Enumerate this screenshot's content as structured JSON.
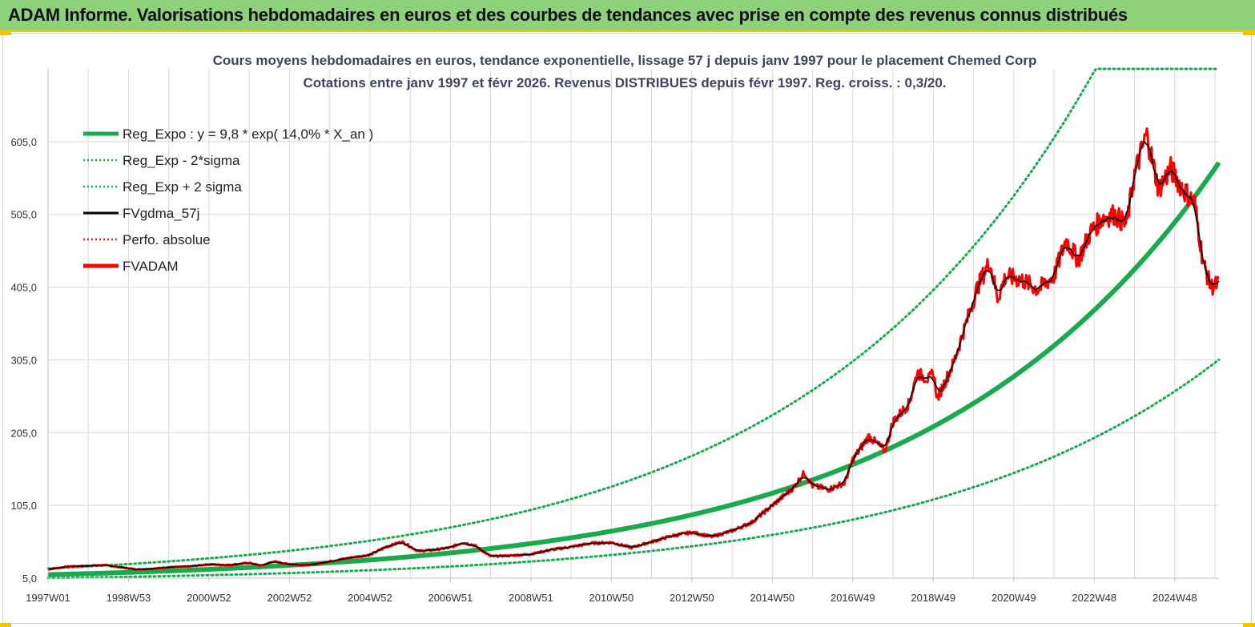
{
  "banner": {
    "title": "ADAM Informe. Valorisations hebdomadaires en euros et des courbes de tendances avec prise en compte des revenus connus distribués"
  },
  "colors": {
    "banner_bg": "#8fd17a",
    "banner_border": "#f2c300",
    "reg_expo": "#1aaa4e",
    "reg_band": "#1aaa4e",
    "fv_smooth": "#000000",
    "fv_adam": "#ff0000",
    "perfo": "#e02020",
    "grid": "#d9d9d9"
  },
  "chart_data": {
    "type": "line",
    "title_line1": "Cours moyens hebdomadaires en euros, tendance exponentielle, lissage 57 j depuis janv 1997 pour le placement Chemed Corp",
    "title_line2": "Cotations entre janv 1997 et févr 2026. Revenus DISTRIBUES depuis févr 1997. Reg. croiss. : 0,3/20.",
    "x_range": [
      1997.0,
      2026.1
    ],
    "x_ticks": [
      {
        "x": 1997.0,
        "label": "1997W01"
      },
      {
        "x": 1999.0,
        "label": "1998W53"
      },
      {
        "x": 2001.0,
        "label": "2000W52"
      },
      {
        "x": 2003.0,
        "label": "2002W52"
      },
      {
        "x": 2005.0,
        "label": "2004W52"
      },
      {
        "x": 2007.0,
        "label": "2006W51"
      },
      {
        "x": 2009.0,
        "label": "2008W51"
      },
      {
        "x": 2011.0,
        "label": "2010W50"
      },
      {
        "x": 2013.0,
        "label": "2012W50"
      },
      {
        "x": 2015.0,
        "label": "2014W50"
      },
      {
        "x": 2017.0,
        "label": "2016W49"
      },
      {
        "x": 2019.0,
        "label": "2018W49"
      },
      {
        "x": 2021.0,
        "label": "2020W49"
      },
      {
        "x": 2023.0,
        "label": "2022W48"
      },
      {
        "x": 2025.0,
        "label": "2024W48"
      }
    ],
    "y_range": [
      5,
      705
    ],
    "y_ticks": [
      {
        "y": 5,
        "label": "5,0"
      },
      {
        "y": 105,
        "label": "105,0"
      },
      {
        "y": 205,
        "label": "205,0"
      },
      {
        "y": 305,
        "label": "305,0"
      },
      {
        "y": 405,
        "label": "405,0"
      },
      {
        "y": 505,
        "label": "505,0"
      },
      {
        "y": 605,
        "label": "605,0"
      }
    ],
    "legend": [
      {
        "key": "reg_expo",
        "label": "Reg_Expo : y = 9,8 * exp( 14,0% *  X_an )",
        "style": "solid-thick",
        "color": "#1aaa4e"
      },
      {
        "key": "reg_minus",
        "label": "Reg_Exp - 2*sigma",
        "style": "dotted",
        "color": "#1aaa4e"
      },
      {
        "key": "reg_plus",
        "label": "Reg_Exp + 2 sigma",
        "style": "dotted",
        "color": "#1aaa4e"
      },
      {
        "key": "fv_smooth",
        "label": "FVgdma_57j",
        "style": "solid",
        "color": "#000000"
      },
      {
        "key": "perfo",
        "label": "Perfo. absolue",
        "style": "dotted",
        "color": "#e02020"
      },
      {
        "key": "fv_adam",
        "label": "FVADAM",
        "style": "solid-thick",
        "color": "#ff0000"
      }
    ],
    "regression": {
      "a": 9.8,
      "b": 0.14,
      "minus_factor": 0.53,
      "plus_factor": 1.88,
      "cap": 705
    },
    "fvadam_points": [
      [
        1997.0,
        17
      ],
      [
        1997.5,
        21
      ],
      [
        1998.0,
        22
      ],
      [
        1998.4,
        23
      ],
      [
        1998.8,
        20
      ],
      [
        1999.2,
        17
      ],
      [
        1999.6,
        18
      ],
      [
        2000.0,
        20
      ],
      [
        2000.5,
        21
      ],
      [
        2001.0,
        24
      ],
      [
        2001.5,
        23
      ],
      [
        2002.0,
        26
      ],
      [
        2002.3,
        22
      ],
      [
        2002.6,
        28
      ],
      [
        2003.0,
        24
      ],
      [
        2003.5,
        23
      ],
      [
        2004.0,
        28
      ],
      [
        2004.5,
        33
      ],
      [
        2005.0,
        37
      ],
      [
        2005.4,
        48
      ],
      [
        2005.8,
        55
      ],
      [
        2006.2,
        42
      ],
      [
        2006.6,
        44
      ],
      [
        2007.0,
        47
      ],
      [
        2007.3,
        54
      ],
      [
        2007.6,
        50
      ],
      [
        2008.0,
        35
      ],
      [
        2008.5,
        36
      ],
      [
        2009.0,
        38
      ],
      [
        2009.5,
        44
      ],
      [
        2010.0,
        48
      ],
      [
        2010.5,
        53
      ],
      [
        2011.0,
        54
      ],
      [
        2011.5,
        47
      ],
      [
        2012.0,
        55
      ],
      [
        2012.5,
        63
      ],
      [
        2013.0,
        68
      ],
      [
        2013.5,
        62
      ],
      [
        2014.0,
        70
      ],
      [
        2014.5,
        82
      ],
      [
        2015.0,
        105
      ],
      [
        2015.5,
        128
      ],
      [
        2015.8,
        150
      ],
      [
        2016.0,
        132
      ],
      [
        2016.4,
        127
      ],
      [
        2016.8,
        136
      ],
      [
        2017.0,
        168
      ],
      [
        2017.4,
        200
      ],
      [
        2017.8,
        180
      ],
      [
        2018.0,
        220
      ],
      [
        2018.4,
        245
      ],
      [
        2018.6,
        287
      ],
      [
        2018.9,
        278
      ],
      [
        2019.0,
        288
      ],
      [
        2019.1,
        252
      ],
      [
        2019.5,
        300
      ],
      [
        2019.9,
        370
      ],
      [
        2020.1,
        405
      ],
      [
        2020.4,
        440
      ],
      [
        2020.6,
        390
      ],
      [
        2020.8,
        420
      ],
      [
        2021.2,
        415
      ],
      [
        2021.6,
        402
      ],
      [
        2022.0,
        420
      ],
      [
        2022.3,
        470
      ],
      [
        2022.6,
        442
      ],
      [
        2022.9,
        480
      ],
      [
        2023.2,
        500
      ],
      [
        2023.5,
        505
      ],
      [
        2023.8,
        490
      ],
      [
        2024.0,
        560
      ],
      [
        2024.3,
        615
      ],
      [
        2024.6,
        540
      ],
      [
        2024.9,
        568
      ],
      [
        2025.2,
        540
      ],
      [
        2025.5,
        520
      ],
      [
        2025.7,
        440
      ],
      [
        2025.9,
        405
      ],
      [
        2026.1,
        410
      ]
    ]
  }
}
